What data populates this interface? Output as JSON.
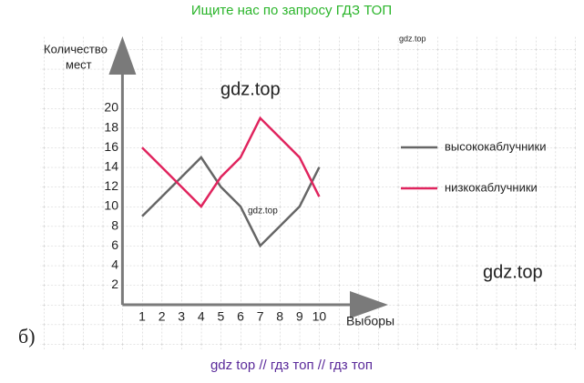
{
  "header": "Ищите нас по запросу ГДЗ ТОП",
  "footer": "gdz top  //  гдз топ  //  гдз топ",
  "panel_label": "б)",
  "watermarks": [
    "gdz.top",
    "gdz.top",
    "gdz.top",
    "gdz.top"
  ],
  "chart_data": {
    "type": "line",
    "y_label": [
      "Количество",
      "мест"
    ],
    "x_label": "Выборы",
    "x": [
      1,
      2,
      3,
      4,
      5,
      6,
      7,
      8,
      9,
      10
    ],
    "xlim": [
      0,
      13.2
    ],
    "ylim": [
      0,
      26.8
    ],
    "xticks": [
      1,
      2,
      3,
      4,
      5,
      6,
      7,
      8,
      9,
      10
    ],
    "yticks": [
      2,
      4,
      6,
      8,
      10,
      12,
      14,
      16,
      18,
      20
    ],
    "legend": "right",
    "series": [
      {
        "name": "высококаблучники",
        "color": "#666666",
        "values": [
          9,
          11,
          13,
          15,
          12,
          10,
          6,
          8,
          10,
          14
        ]
      },
      {
        "name": "низкокаблучники",
        "color": "#e0245e",
        "values": [
          16,
          14,
          12,
          10,
          13,
          15,
          19,
          17,
          15,
          11
        ]
      }
    ]
  }
}
